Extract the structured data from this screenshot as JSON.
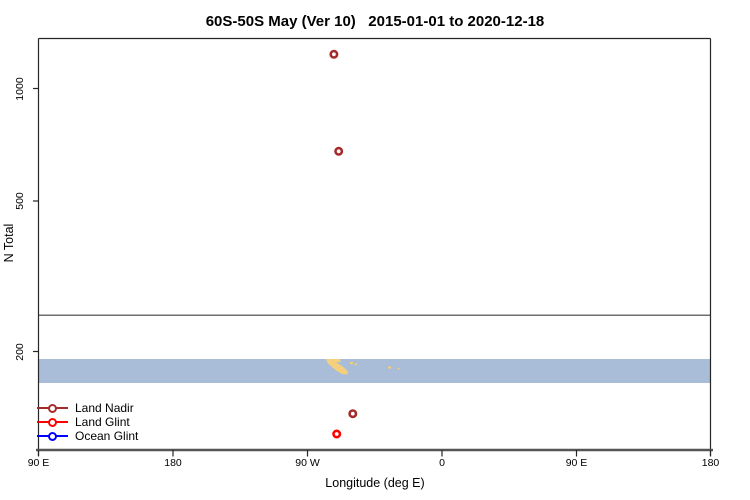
{
  "title": "60S-50S May (Ver 10)   2015-01-01 to 2020-12-18",
  "colors": {
    "land_nadir": "#A52A2A",
    "land_glint": "#FF0000",
    "ocean_glint": "#0000FF",
    "ocean": "#A9BDD9",
    "land": "#F4D07C",
    "axis_gray": "#555555",
    "frame": "#262626"
  },
  "chart_data": {
    "type": "scatter",
    "title": "60S-50S May (Ver 10)   2015-01-01 to 2020-12-18",
    "xlabel": "Longitude (deg E)",
    "ylabel": "N Total",
    "x_ticks": [
      "90 E",
      "180",
      "90 W",
      "0",
      "90 E",
      "180"
    ],
    "y_tick_labels": [
      "1000",
      "500",
      "200"
    ],
    "y_scale": "log",
    "x_axis_deg_continuous_range": [
      90,
      540
    ],
    "ylim": [
      110,
      1360
    ],
    "grid": false,
    "threshold_n": 250,
    "legend_position": "bottom-left-inside",
    "series": [
      {
        "name": "Land Nadir",
        "color": "#A52A2A",
        "points": [
          {
            "lon_deg_e": -72.2,
            "n_total": 1230
          },
          {
            "lon_deg_e": -69.0,
            "n_total": 680
          },
          {
            "lon_deg_e": -59.5,
            "n_total": 137
          }
        ]
      },
      {
        "name": "Land Glint",
        "color": "#FF0000",
        "points": [
          {
            "lon_deg_e": -70.3,
            "n_total": 121
          }
        ]
      },
      {
        "name": "Ocean Glint",
        "color": "#0000FF",
        "points": []
      }
    ],
    "map_strip": {
      "latitude_band": "60S-50S",
      "ocean_color": "#A9BDD9",
      "land_color": "#F4D07C"
    }
  },
  "legend": {
    "items": [
      {
        "label": "Land Nadir",
        "color": "#A52A2A"
      },
      {
        "label": "Land Glint",
        "color": "#FF0000"
      },
      {
        "label": "Ocean Glint",
        "color": "#0000FF"
      }
    ]
  }
}
